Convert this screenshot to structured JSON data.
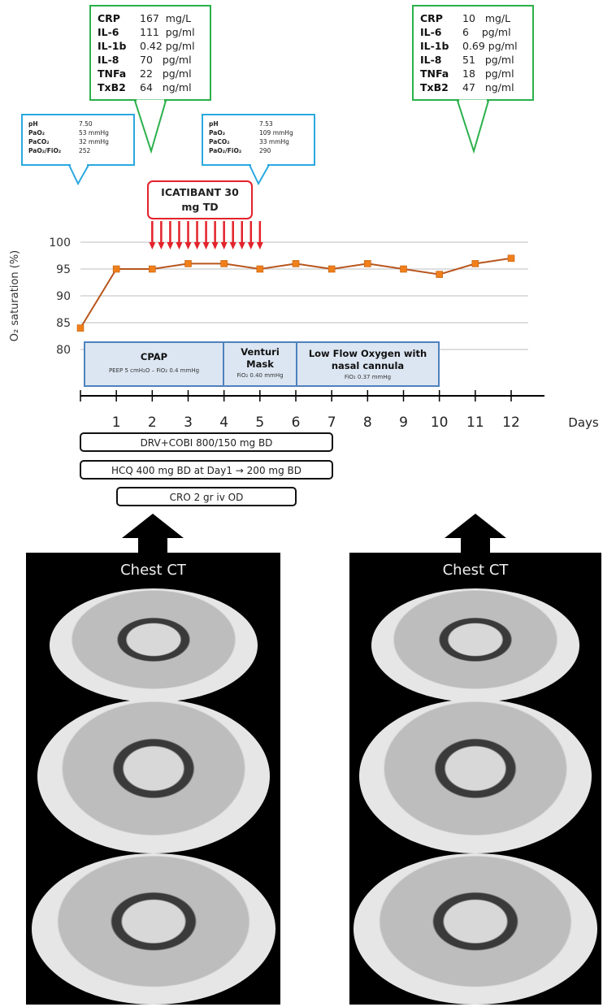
{
  "lab_box_left": {
    "rows": [
      {
        "k": "CRP",
        "v": "167  mg/L"
      },
      {
        "k": "IL-6",
        "v": "111  pg/ml"
      },
      {
        "k": "IL-1b",
        "v": "0.42 pg/ml"
      },
      {
        "k": "IL-8",
        "v": "70   pg/ml"
      },
      {
        "k": "TNFa",
        "v": "22   pg/ml"
      },
      {
        "k": "TxB2",
        "v": "64   ng/ml"
      }
    ]
  },
  "lab_box_right": {
    "rows": [
      {
        "k": "CRP",
        "v": "10   mg/L"
      },
      {
        "k": "IL-6",
        "v": "6    pg/ml"
      },
      {
        "k": "IL-1b",
        "v": "0.69 pg/ml"
      },
      {
        "k": "IL-8",
        "v": "51   pg/ml"
      },
      {
        "k": "TNFa",
        "v": "18   pg/ml"
      },
      {
        "k": "TxB2",
        "v": "47   ng/ml"
      }
    ]
  },
  "blood_gas_left": {
    "rows": [
      {
        "k": "pH",
        "v": "7.50"
      },
      {
        "k": "PaO₂",
        "v": "53 mmHg"
      },
      {
        "k": "PaCO₂",
        "v": "32 mmHg"
      },
      {
        "k": "PaO₂/FiO₂",
        "v": "252"
      }
    ]
  },
  "blood_gas_right": {
    "rows": [
      {
        "k": "pH",
        "v": "7.53"
      },
      {
        "k": "PaO₂",
        "v": "109 mmHg"
      },
      {
        "k": "PaCO₂",
        "v": "33 mmHg"
      },
      {
        "k": "PaO₂/FiO₂",
        "v": "290"
      }
    ]
  },
  "icatibant": {
    "line1": "ICATIBANT 30",
    "line2": "mg TD",
    "color": "#e3222b"
  },
  "chart_data": {
    "type": "line",
    "ylabel": "O₂ saturation (%)",
    "xlabel": "Days",
    "x": [
      0,
      1,
      2,
      3,
      4,
      5,
      6,
      7,
      8,
      9,
      10,
      11,
      12
    ],
    "values": [
      84,
      95,
      95,
      96,
      96,
      95,
      96,
      95,
      96,
      95,
      94,
      96,
      97
    ],
    "x_tick_labels": [
      "1",
      "2",
      "3",
      "4",
      "5",
      "6",
      "7",
      "8",
      "9",
      "10",
      "11",
      "12"
    ],
    "y_ticks": [
      80,
      85,
      90,
      95,
      100
    ],
    "ylim": [
      80,
      100
    ],
    "xlim": [
      0,
      12
    ],
    "grid": true,
    "line_color": "#b8561e",
    "marker_color": "#f07f1a",
    "icatibant_days": [
      2.0,
      2.25,
      2.5,
      2.75,
      3.0,
      3.25,
      3.5,
      3.75,
      4.0,
      4.25,
      4.5,
      4.75,
      5.0
    ]
  },
  "phases": [
    {
      "title": "CPAP",
      "sub": "PEEP 5 cmH₂O – FiO₂ 0.4 mmHg"
    },
    {
      "title": "Venturi Mask",
      "sub": "FiO₂ 0.40 mmHg"
    },
    {
      "title": "Low Flow Oxygen with nasal cannula",
      "sub": "FiO₂ 0.37 mmHg"
    }
  ],
  "treatments": [
    {
      "label": "DRV+COBI 800/150 mg BD"
    },
    {
      "label": "HCQ 400 mg BD at Day1 → 200 mg BD"
    },
    {
      "label": "CRO 2 gr iv OD"
    }
  ],
  "ct_panels": [
    {
      "title": "Chest CT"
    },
    {
      "title": "Chest CT"
    }
  ]
}
